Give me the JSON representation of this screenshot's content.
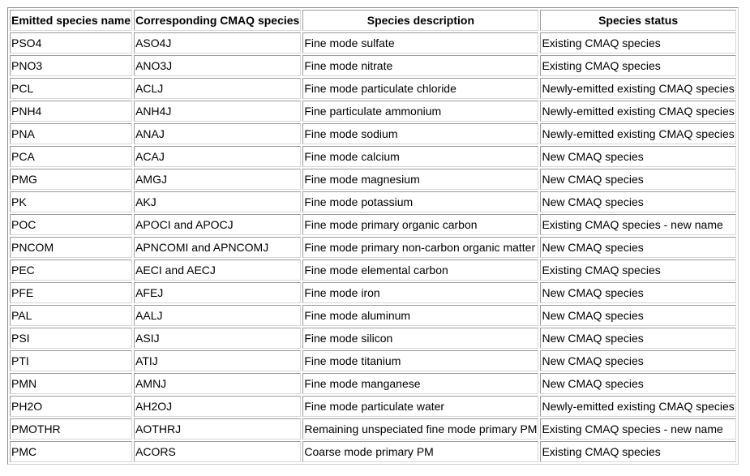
{
  "table": {
    "headers": [
      "Emitted species name",
      "Corresponding CMAQ species",
      "Species description",
      "Species status"
    ],
    "rows": [
      [
        "PSO4",
        "ASO4J",
        "Fine mode sulfate",
        "Existing CMAQ species"
      ],
      [
        "PNO3",
        "ANO3J",
        "Fine mode nitrate",
        "Existing CMAQ species"
      ],
      [
        "PCL",
        "ACLJ",
        "Fine mode particulate chloride",
        "Newly-emitted existing CMAQ species"
      ],
      [
        "PNH4",
        "ANH4J",
        "Fine particulate ammonium",
        "Newly-emitted existing CMAQ species"
      ],
      [
        "PNA",
        "ANAJ",
        "Fine mode sodium",
        "Newly-emitted existing CMAQ species"
      ],
      [
        "PCA",
        "ACAJ",
        "Fine mode calcium",
        "New CMAQ species"
      ],
      [
        "PMG",
        "AMGJ",
        "Fine mode magnesium",
        "New CMAQ species"
      ],
      [
        "PK",
        "AKJ",
        "Fine mode potassium",
        "New CMAQ species"
      ],
      [
        "POC",
        "APOCI and APOCJ",
        "Fine mode primary organic carbon",
        "Existing CMAQ species - new name"
      ],
      [
        "PNCOM",
        "APNCOMI and APNCOMJ",
        "Fine mode primary non-carbon organic matter",
        "New CMAQ species"
      ],
      [
        "PEC",
        "AECI and AECJ",
        "Fine mode elemental carbon",
        "Existing CMAQ species"
      ],
      [
        "PFE",
        "AFEJ",
        "Fine mode iron",
        "New CMAQ species"
      ],
      [
        "PAL",
        "AALJ",
        "Fine mode aluminum",
        "New CMAQ species"
      ],
      [
        "PSI",
        "ASIJ",
        "Fine mode silicon",
        "New CMAQ species"
      ],
      [
        "PTI",
        "ATIJ",
        "Fine mode titanium",
        "New CMAQ species"
      ],
      [
        "PMN",
        "AMNJ",
        "Fine mode manganese",
        "New CMAQ species"
      ],
      [
        "PH2O",
        "AH2OJ",
        "Fine mode particulate water",
        "Newly-emitted existing CMAQ species"
      ],
      [
        "PMOTHR",
        "AOTHRJ",
        "Remaining unspeciated fine mode primary PM",
        "Existing CMAQ species - new name"
      ],
      [
        "PMC",
        "ACORS",
        "Coarse mode primary PM",
        "Existing CMAQ species"
      ]
    ]
  }
}
